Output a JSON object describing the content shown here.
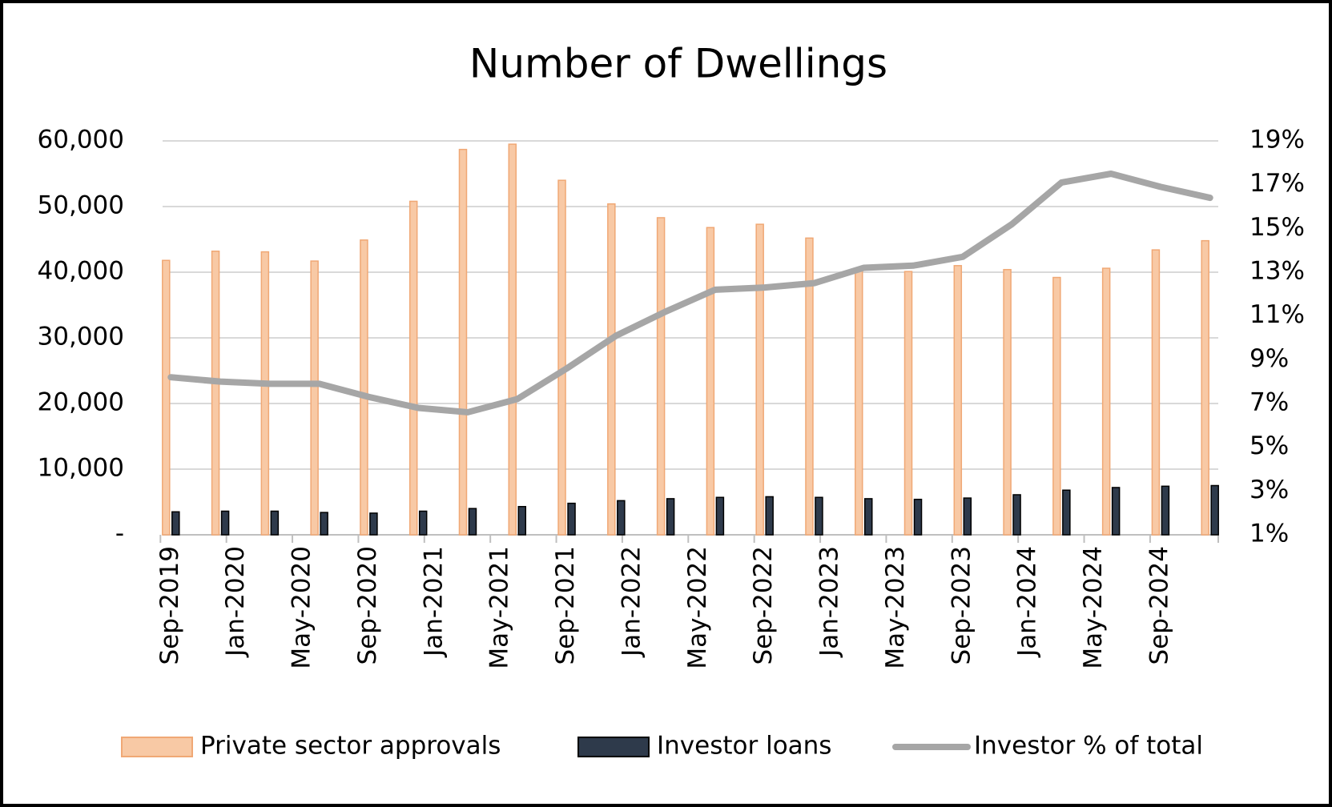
{
  "chart_data": {
    "type": "bar",
    "title": "Number of Dwellings",
    "x": [
      "2019-09",
      "2019-12",
      "2020-03",
      "2020-06",
      "2020-09",
      "2020-12",
      "2021-03",
      "2021-06",
      "2021-09",
      "2021-12",
      "2022-03",
      "2022-06",
      "2022-09",
      "2022-12",
      "2023-03",
      "2023-06",
      "2023-09",
      "2023-12",
      "2024-03",
      "2024-06",
      "2024-09",
      "2024-12"
    ],
    "series": [
      {
        "name": "Private sector approvals",
        "type": "bar",
        "color": "#f8c9a5",
        "values": [
          41800,
          43200,
          43100,
          41700,
          44900,
          50800,
          58700,
          59500,
          54000,
          50400,
          48300,
          46800,
          47300,
          45200,
          40300,
          40100,
          41000,
          40400,
          39200,
          40600,
          43400,
          44800
        ]
      },
      {
        "name": "Investor loans",
        "type": "bar",
        "color": "#2e3a4b",
        "values": [
          3500,
          3600,
          3600,
          3400,
          3300,
          3600,
          4000,
          4300,
          4800,
          5200,
          5500,
          5700,
          5800,
          5700,
          5500,
          5400,
          5600,
          6100,
          6800,
          7200,
          7400,
          7500
        ]
      },
      {
        "name": "Investor % of total",
        "type": "line",
        "axis": "y2",
        "color": "#a6a6a6",
        "values": [
          8.2,
          8.0,
          7.9,
          7.9,
          7.3,
          6.8,
          6.6,
          7.2,
          8.6,
          10.1,
          11.2,
          12.2,
          12.3,
          12.5,
          13.2,
          13.3,
          13.7,
          15.2,
          17.1,
          17.5,
          16.9,
          16.4
        ]
      }
    ],
    "xticks": [
      {
        "value": "2019-09",
        "label": "Sep-2019"
      },
      {
        "value": "2020-01",
        "label": "Jan-2020"
      },
      {
        "value": "2020-05",
        "label": "May-2020"
      },
      {
        "value": "2020-09",
        "label": "Sep-2020"
      },
      {
        "value": "2021-01",
        "label": "Jan-2021"
      },
      {
        "value": "2021-05",
        "label": "May-2021"
      },
      {
        "value": "2021-09",
        "label": "Sep-2021"
      },
      {
        "value": "2022-01",
        "label": "Jan-2022"
      },
      {
        "value": "2022-05",
        "label": "May-2022"
      },
      {
        "value": "2022-09",
        "label": "Sep-2022"
      },
      {
        "value": "2023-01",
        "label": "Jan-2023"
      },
      {
        "value": "2023-05",
        "label": "May-2023"
      },
      {
        "value": "2023-09",
        "label": "Sep-2023"
      },
      {
        "value": "2024-01",
        "label": "Jan-2024"
      },
      {
        "value": "2024-05",
        "label": "May-2024"
      },
      {
        "value": "2024-09",
        "label": "Sep-2024"
      }
    ],
    "ylim": [
      0,
      60000
    ],
    "yticks": [
      {
        "value": 0,
        "label": "-"
      },
      {
        "value": 10000,
        "label": "10,000"
      },
      {
        "value": 20000,
        "label": "20,000"
      },
      {
        "value": 30000,
        "label": "30,000"
      },
      {
        "value": 40000,
        "label": "40,000"
      },
      {
        "value": 50000,
        "label": "50,000"
      },
      {
        "value": 60000,
        "label": "60,000"
      }
    ],
    "y2lim": [
      1,
      19
    ],
    "y2ticks": [
      {
        "value": 1,
        "label": "1%"
      },
      {
        "value": 3,
        "label": "3%"
      },
      {
        "value": 5,
        "label": "5%"
      },
      {
        "value": 7,
        "label": "7%"
      },
      {
        "value": 9,
        "label": "9%"
      },
      {
        "value": 11,
        "label": "11%"
      },
      {
        "value": 13,
        "label": "13%"
      },
      {
        "value": 15,
        "label": "15%"
      },
      {
        "value": 17,
        "label": "17%"
      },
      {
        "value": 19,
        "label": "19%"
      }
    ],
    "grid": true,
    "legend": "bottom"
  }
}
